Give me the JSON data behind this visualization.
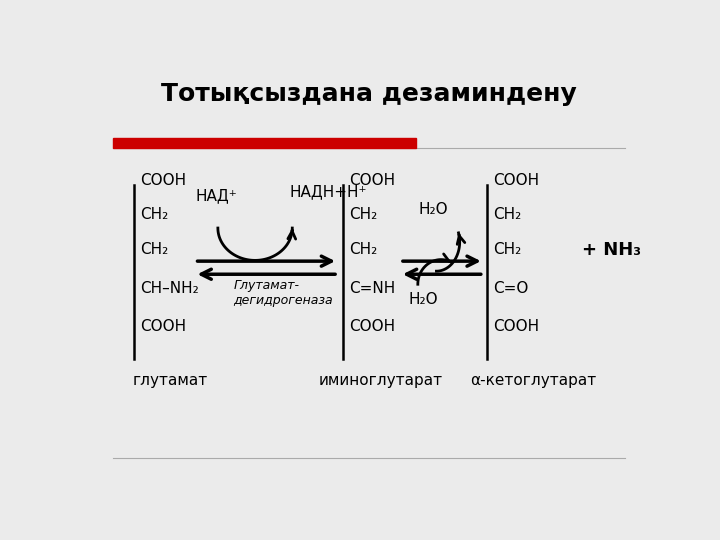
{
  "title": "Тотықсыздана дезаминдену",
  "bg_color": "#ebebeb",
  "red_bar_color": "#cc0000",
  "text_color": "#000000",
  "glutamate_label": "глутамат",
  "iminoglutarate_label": "иминоглутарат",
  "ketoglutarate_label": "α-кетоглутарат",
  "nad_plus": "НАД⁺",
  "nadh": "НАДН+Н⁺",
  "enzyme": "Глутамат-\nдегидрогеназа",
  "h2o_top": "H₂O",
  "h2o_bottom": "H₂O",
  "nh3": "+ NH₃"
}
